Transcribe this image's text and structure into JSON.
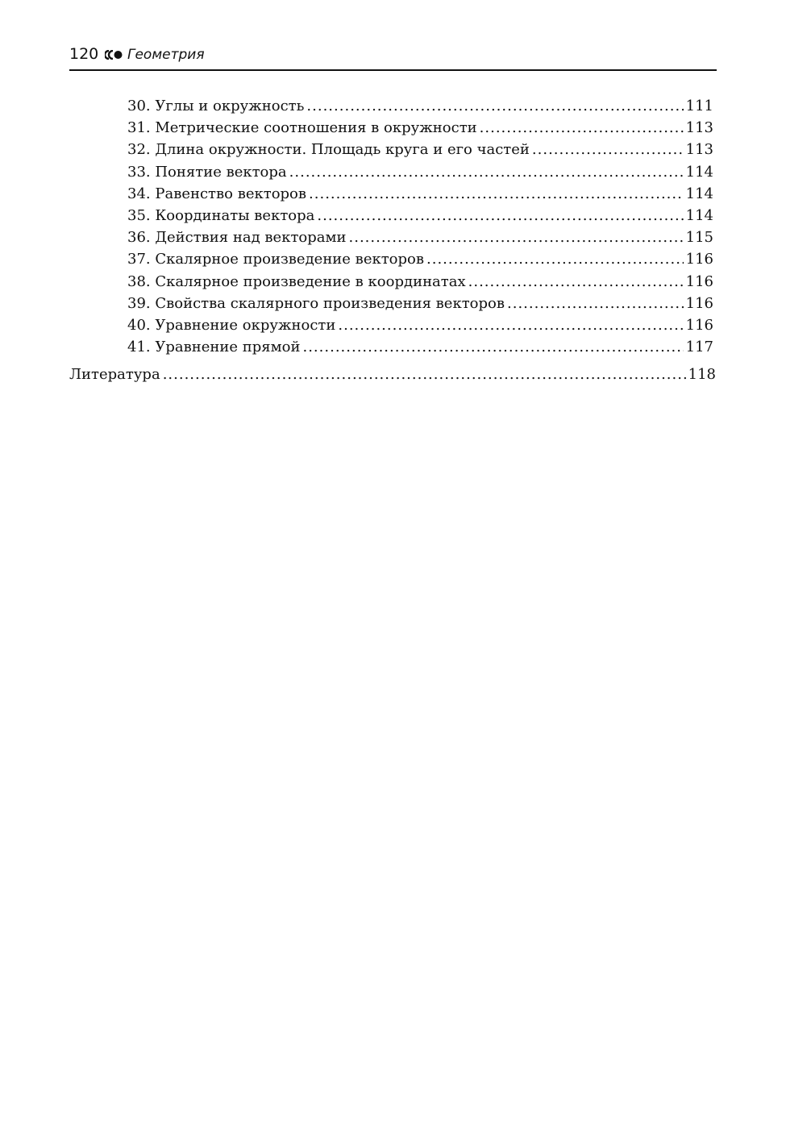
{
  "header": {
    "page_number": "120",
    "title": "Геометрия",
    "ornament-icon": "triple-dot-ornament"
  },
  "entries": [
    {
      "label": "30. Углы и окружность",
      "page": "111"
    },
    {
      "label": "31. Метрические соотношения в окружности",
      "page": "113"
    },
    {
      "label": "32. Длина окружности. Площадь круга и его частей",
      "page": "113"
    },
    {
      "label": "33. Понятие вектора",
      "page": "114"
    },
    {
      "label": "34. Равенство векторов",
      "page": "114"
    },
    {
      "label": "35. Координаты вектора",
      "page": "114"
    },
    {
      "label": "36. Действия над векторами",
      "page": "115"
    },
    {
      "label": "37. Скалярное произведение векторов",
      "page": "116"
    },
    {
      "label": "38. Скалярное произведение в координатах",
      "page": "116"
    },
    {
      "label": "39. Свойства скалярного произведения векторов",
      "page": "116"
    },
    {
      "label": "40. Уравнение окружности",
      "page": "116"
    },
    {
      "label": "41. Уравнение прямой",
      "page": "117"
    }
  ],
  "literature": {
    "label": "Литература",
    "page": "118"
  }
}
